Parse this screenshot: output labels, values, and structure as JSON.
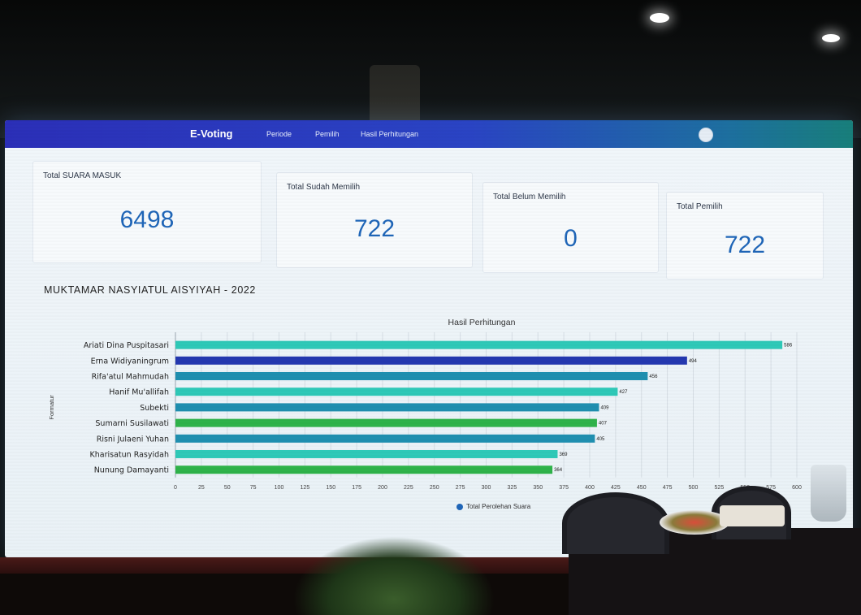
{
  "nav": {
    "brand": "E-Voting",
    "links": [
      "Periode",
      "Pemilih",
      "Hasil Perhitungan"
    ]
  },
  "stats": [
    {
      "label": "Total SUARA MASUK",
      "value": "6498"
    },
    {
      "label": "Total Sudah Memilih",
      "value": "722"
    },
    {
      "label": "Total Belum Memilih",
      "value": "0"
    },
    {
      "label": "Total Pemilih",
      "value": "722"
    }
  ],
  "section_title": "MUKTAMAR NASYIATUL AISYIYAH - 2022",
  "colors": {
    "nav_start": "#2b2fb8",
    "nav_end": "#187f7b",
    "value_blue": "#1f66b8",
    "bar_teal": "#2ec9b8",
    "bar_blue": "#2438b0",
    "bar_steel": "#1f8fb0",
    "bar_green": "#2fb34a"
  },
  "chart_data": {
    "type": "bar",
    "orientation": "horizontal",
    "title": "Hasil Perhitungan",
    "ylabel": "Formatur",
    "xlabel": "",
    "categories": [
      "Ariati Dina Puspitasari",
      "Erna Widiyaningrum",
      "Rifa'atul Mahmudah",
      "Hanif Mu'allifah",
      "Subekti",
      "Sumarni Susilawati",
      "Risni Julaeni Yuhan",
      "Kharisatun Rasyidah",
      "Nunung Damayanti"
    ],
    "series": [
      {
        "name": "Total Perolehan Suara",
        "values": [
          586,
          494,
          456,
          427,
          409,
          407,
          405,
          369,
          364
        ],
        "labels": [
          "586",
          "494",
          "456",
          "427",
          "409",
          "407",
          "405",
          "369",
          "364"
        ],
        "colors": [
          "#2ec9b8",
          "#2438b0",
          "#1f8fb0",
          "#2ec9b8",
          "#1f8fb0",
          "#2fb34a",
          "#1f8fb0",
          "#2ec9b8",
          "#2fb34a"
        ]
      }
    ],
    "xlim": [
      0,
      600
    ],
    "xticks": [
      0,
      25,
      50,
      75,
      100,
      125,
      150,
      175,
      200,
      225,
      250,
      275,
      300,
      325,
      350,
      375,
      400,
      425,
      450,
      475,
      500,
      525,
      550,
      575,
      600
    ],
    "grid": true,
    "legend": "bottom"
  }
}
